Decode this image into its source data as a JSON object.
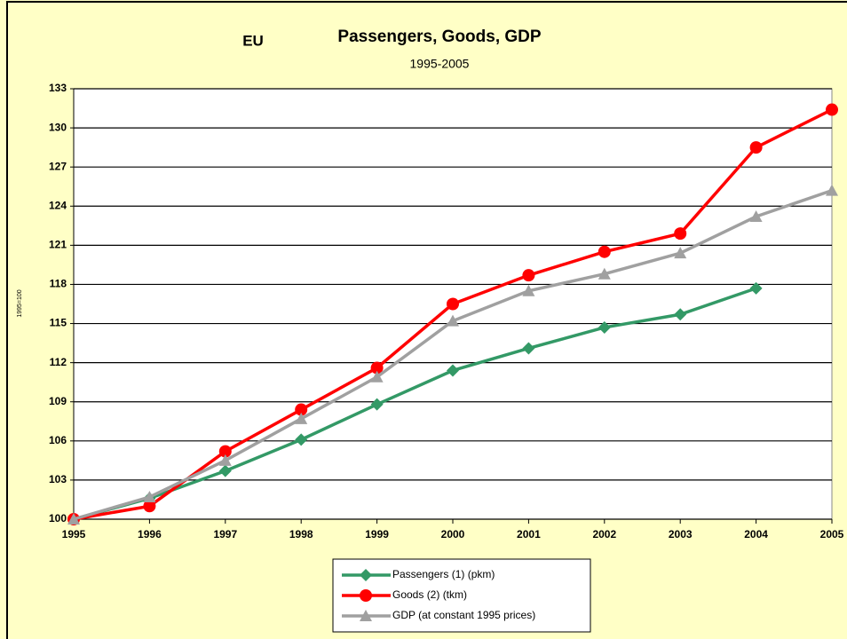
{
  "chart_data": {
    "type": "line",
    "label": "EU",
    "title": "Passengers, Goods, GDP",
    "subtitle": "1995-2005",
    "y_label": "1995=100",
    "x": [
      1995,
      1996,
      1997,
      1998,
      1999,
      2000,
      2001,
      2002,
      2003,
      2004,
      2005
    ],
    "xlim": [
      1995,
      2005
    ],
    "xticks": [
      1995,
      1996,
      1997,
      1998,
      1999,
      2000,
      2001,
      2002,
      2003,
      2004,
      2005
    ],
    "ylim": [
      100,
      133
    ],
    "yticks": [
      100,
      103,
      106,
      109,
      112,
      115,
      118,
      121,
      124,
      127,
      130,
      133
    ],
    "grid": true,
    "series": [
      {
        "name": "Passengers (1) (pkm)",
        "color": "#339966",
        "marker": "diamond",
        "values": [
          100,
          101.6,
          103.7,
          106.1,
          108.8,
          111.4,
          113.1,
          114.7,
          115.7,
          117.7,
          null
        ]
      },
      {
        "name": "Goods (2) (tkm)",
        "color": "#ff0000",
        "marker": "circle",
        "values": [
          100,
          101,
          105.2,
          108.4,
          111.6,
          116.5,
          118.7,
          120.5,
          121.9,
          128.5,
          131.4
        ]
      },
      {
        "name": "GDP (at constant 1995 prices)",
        "color": "#a0a0a0",
        "marker": "triangle",
        "values": [
          100,
          101.7,
          104.5,
          107.7,
          110.9,
          115.2,
          117.5,
          118.8,
          120.4,
          123.2,
          125.2
        ]
      }
    ]
  }
}
